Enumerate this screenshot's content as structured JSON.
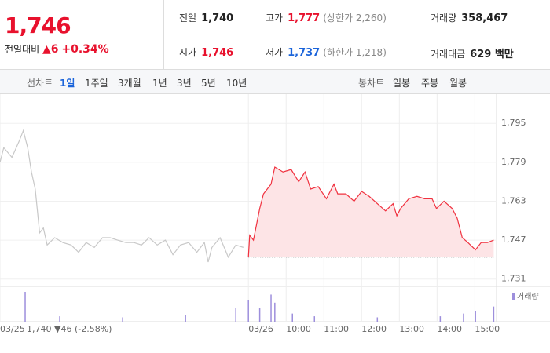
{
  "header": {
    "price": "1,746",
    "change_label": "전일대비",
    "change": "▲6",
    "change_pct": "+0.34%",
    "stats": [
      {
        "label": "전일",
        "value": {
          "value": 1740,
          "label": "1,740"
        }
      },
      {
        "label": "고가",
        "value": "1,777",
        "note": "(상한가 2,260)"
      },
      {
        "label": "거래량",
        "value": "358,467"
      },
      {
        "label": "시가",
        "value": "1,746"
      },
      {
        "label": "저가",
        "value": "1,737",
        "note": "(하한가 1,218)"
      },
      {
        "label": "거래대금",
        "value": "629 백만"
      }
    ]
  },
  "toolbar": {
    "line_label": "선차트",
    "periods": [
      "1일",
      "1주일",
      "3개월",
      "1년",
      "3년",
      "5년",
      "10년"
    ],
    "candle_label": "봉차트",
    "candles": [
      "일봉",
      "주봉",
      "월봉"
    ]
  },
  "prev_day_summary": "1,740 ▼46 (-2.58%)",
  "chart_data": {
    "type": "line",
    "grid": true,
    "xlim": [
      -395,
      392
    ],
    "ylim": [
      1728,
      1807
    ],
    "yticks": [
      {
        "value": 1731,
        "label": "1,731"
      },
      {
        "value": 1747,
        "label": "1,747"
      },
      {
        "value": 1763,
        "label": "1,763"
      },
      {
        "value": 1779,
        "label": "1,779"
      },
      {
        "value": 1795,
        "label": "1,795"
      }
    ],
    "xticks": [
      {
        "value": -395,
        "label": "03/25"
      },
      {
        "value": 0,
        "label": "03/26"
      },
      {
        "value": 60,
        "label": "10:00"
      },
      {
        "value": 120,
        "label": "11:00"
      },
      {
        "value": 180,
        "label": "12:00"
      },
      {
        "value": 240,
        "label": "13:00"
      },
      {
        "value": 300,
        "label": "14:00"
      },
      {
        "value": 360,
        "label": "15:00"
      }
    ],
    "series": [
      {
        "color": "#c8c8c8",
        "x": [
          -395,
          -389,
          -376,
          -364,
          -358,
          -351,
          -345,
          -339,
          -332,
          -326,
          -320,
          -308,
          -295,
          -282,
          -270,
          -258,
          -245,
          -232,
          -220,
          -208,
          -195,
          -182,
          -170,
          -158,
          -145,
          -132,
          -120,
          -108,
          -95,
          -82,
          -70,
          -64,
          -58,
          -45,
          -32,
          -20,
          -8
        ],
        "values": [
          1779,
          1785,
          1781,
          1788,
          1792,
          1785,
          1775,
          1768,
          1750,
          1752,
          1745,
          1748,
          1746,
          1745,
          1742,
          1746,
          1744,
          1748,
          1748,
          1747,
          1746,
          1746,
          1745,
          1748,
          1745,
          1747,
          1741,
          1745,
          1746,
          1742,
          1746,
          1738,
          1744,
          1748,
          1740,
          1745,
          1744
        ]
      },
      {
        "color": "#f0313f",
        "x": [
          0,
          2,
          8,
          18,
          24,
          36,
          42,
          55,
          68,
          80,
          90,
          99,
          111,
          124,
          136,
          142,
          155,
          168,
          180,
          192,
          205,
          218,
          230,
          236,
          242,
          255,
          268,
          280,
          292,
          299,
          311,
          324,
          332,
          340,
          349,
          361,
          370,
          380,
          390
        ],
        "values": [
          1740,
          1749,
          1747,
          1760,
          1766,
          1770,
          1777,
          1775,
          1776,
          1771,
          1775,
          1768,
          1769,
          1764,
          1770,
          1766,
          1766,
          1763,
          1767,
          1765,
          1762,
          1759,
          1762,
          1757,
          1760,
          1764,
          1765,
          1764,
          1764,
          1760,
          1763,
          1760,
          1756,
          1748,
          1746,
          1743,
          1746,
          1746,
          1747
        ]
      },
      {
        "name": "거래량",
        "color": "#9d8fdc",
        "x": [
          -355,
          -300,
          -200,
          -100,
          -20,
          0,
          18,
          36,
          42,
          70,
          105,
          205,
          305,
          342,
          361,
          390
        ],
        "values": [
          55,
          10,
          8,
          12,
          25,
          40,
          25,
          50,
          35,
          15,
          10,
          8,
          10,
          15,
          20,
          28
        ]
      }
    ]
  }
}
